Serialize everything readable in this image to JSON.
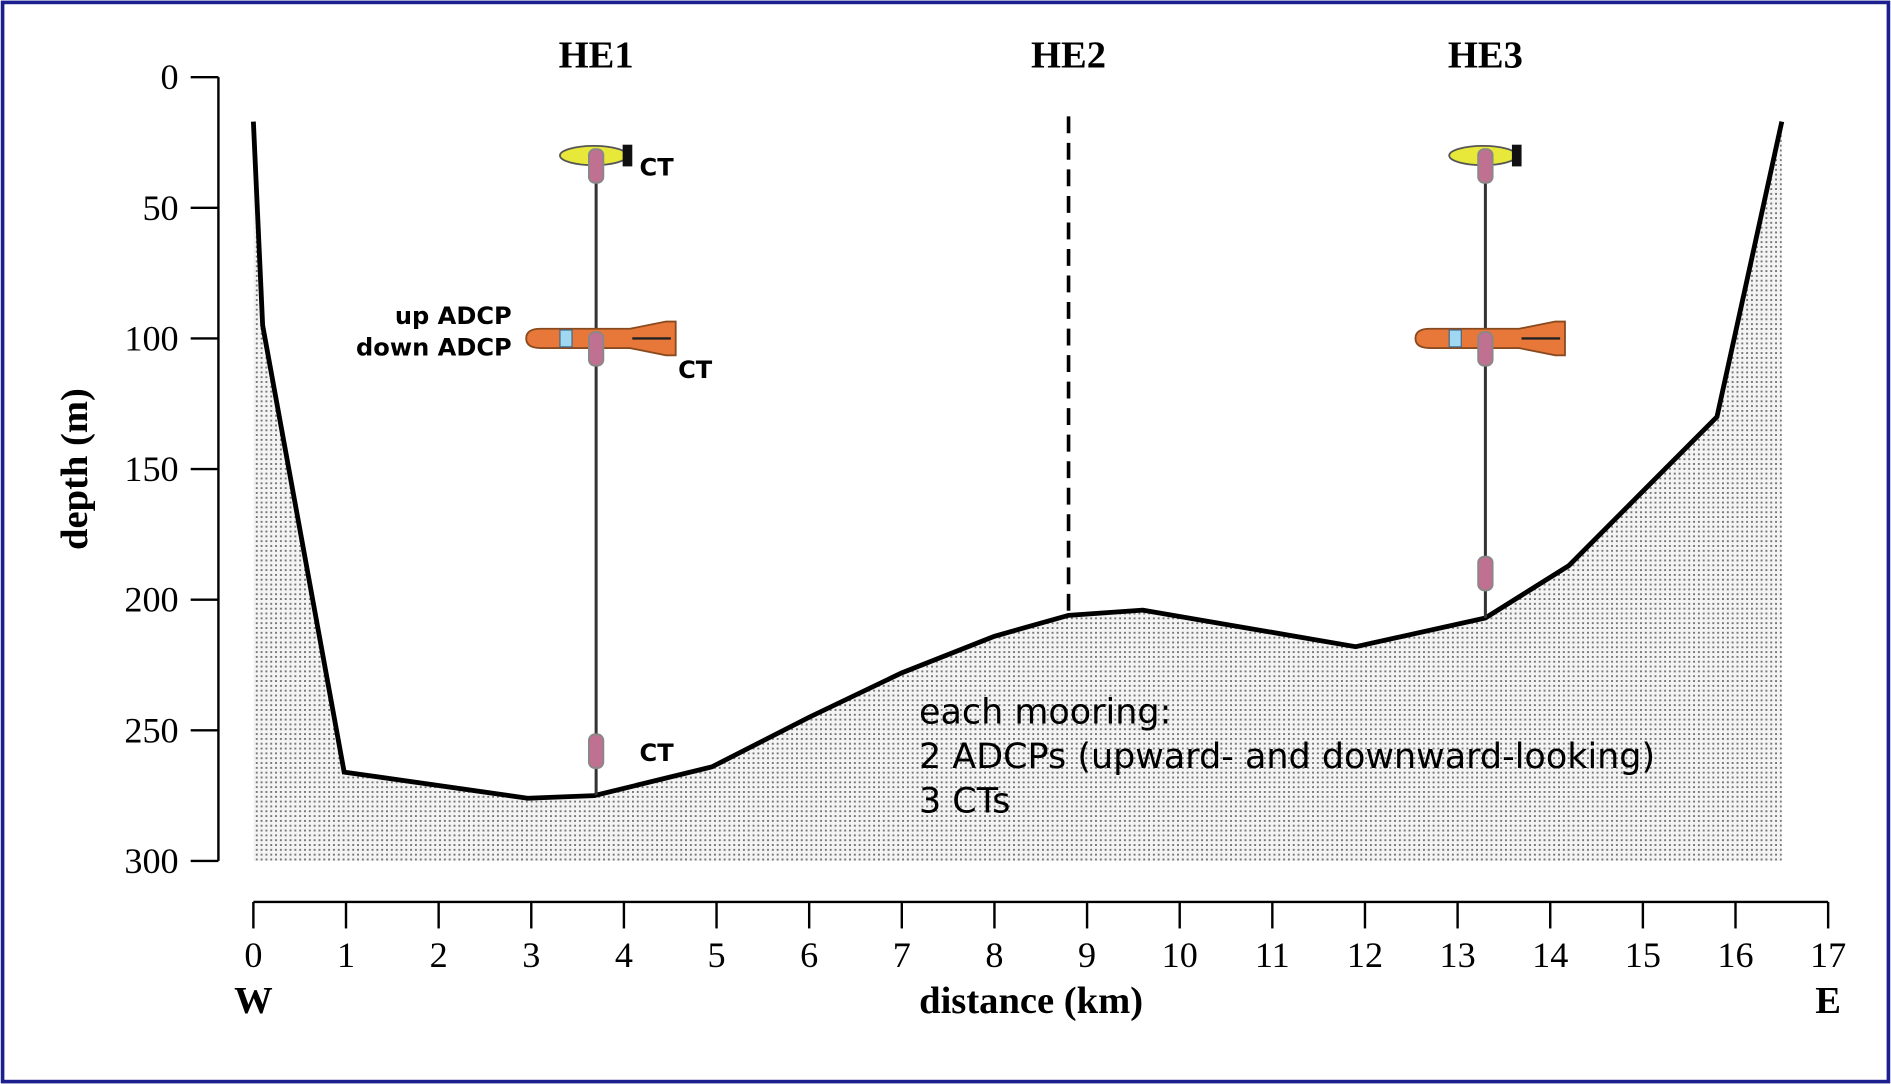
{
  "chart_data": {
    "type": "area",
    "x_label": "distance (km)",
    "y_label": "depth (m)",
    "x_end_labels": [
      "W",
      "E"
    ],
    "x": [
      0,
      0.1,
      0.98,
      2.96,
      3.68,
      4.95,
      6,
      7,
      8,
      8.8,
      9.6,
      11.9,
      13.3,
      14.2,
      15.8,
      16.5
    ],
    "values": [
      17,
      95,
      266,
      276,
      275,
      264,
      245,
      228,
      214,
      206,
      204,
      218,
      207,
      187,
      130,
      17
    ],
    "color": "#000000",
    "fill_pattern": "dotted",
    "xlim": [
      0,
      17
    ],
    "xticks": [
      0,
      1,
      2,
      3,
      4,
      5,
      6,
      7,
      8,
      9,
      10,
      11,
      12,
      13,
      14,
      15,
      16,
      17
    ],
    "ylim": [
      300,
      0
    ],
    "yticks": [
      0,
      50,
      100,
      150,
      200,
      250,
      300
    ],
    "moorings": [
      {
        "name": "HE1",
        "x": 3.7,
        "instruments": [
          {
            "kind": "float",
            "depth": 30
          },
          {
            "kind": "ct",
            "depth": 34,
            "label": "CT"
          },
          {
            "kind": "adcp",
            "depth": 100,
            "labels": [
              "up ADCP",
              "down ADCP"
            ]
          },
          {
            "kind": "ct",
            "depth": 104,
            "label": "CT"
          },
          {
            "kind": "ct",
            "depth": 258,
            "label": "CT"
          }
        ]
      },
      {
        "name": "HE2",
        "x": 8.8,
        "dashed": true,
        "top": 15
      },
      {
        "name": "HE3",
        "x": 13.3,
        "instruments": [
          {
            "kind": "float",
            "depth": 30
          },
          {
            "kind": "ct",
            "depth": 34
          },
          {
            "kind": "adcp",
            "depth": 100
          },
          {
            "kind": "ct",
            "depth": 104
          },
          {
            "kind": "ct",
            "depth": 190
          }
        ]
      }
    ],
    "note": [
      "each mooring:",
      "2 ADCPs (upward- and downward-looking)",
      "3 CTs"
    ]
  }
}
